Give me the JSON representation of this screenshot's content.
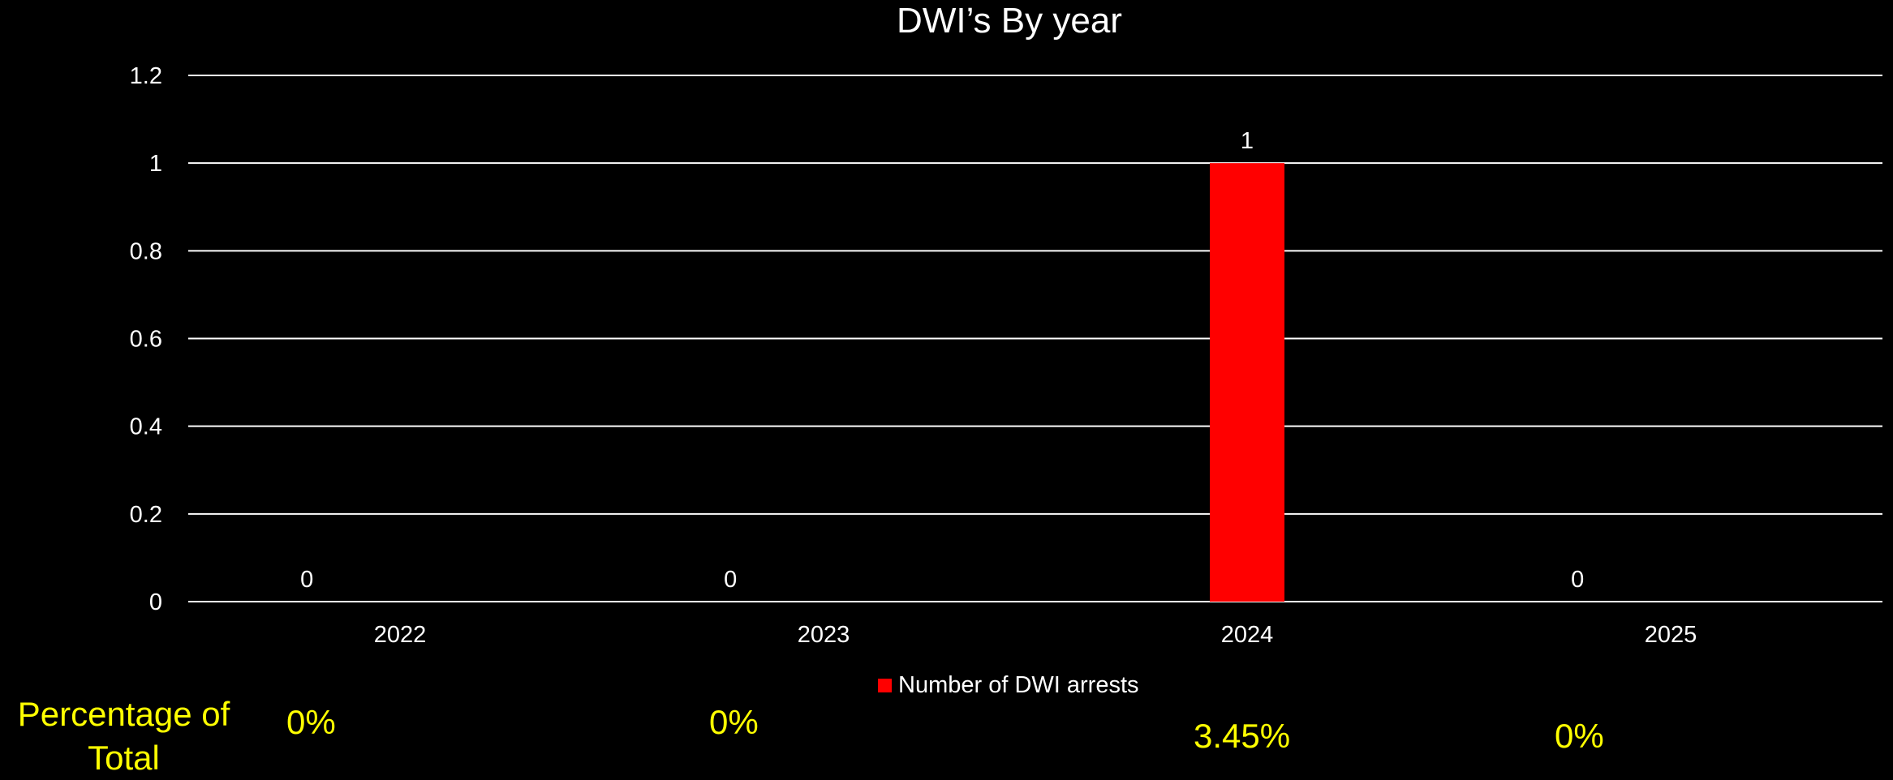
{
  "chart_data": {
    "type": "bar",
    "title": "DWI’s By year",
    "categories": [
      "2022",
      "2023",
      "2024",
      "2025"
    ],
    "series": [
      {
        "name": "Number of DWI arrests",
        "values": [
          0,
          0,
          1,
          0
        ],
        "data_labels": [
          "0",
          "0",
          "1",
          "0"
        ],
        "color": "#ff0000"
      }
    ],
    "ylim": [
      0,
      1.2
    ],
    "yticks": [
      "0",
      "0.2",
      "0.4",
      "0.6",
      "0.8",
      "1",
      "1.2"
    ],
    "xlabel": "",
    "ylabel": "",
    "grid": true,
    "legend_position": "bottom"
  },
  "percentage": {
    "title_line1": "Percentage of",
    "title_line2": "Total",
    "values": [
      "0%",
      "0%",
      "3.45%",
      "0%"
    ]
  },
  "colors": {
    "background": "#000000",
    "text": "#ffffff",
    "gridline": "#ffffff",
    "bar": "#ff0000",
    "percentage_text": "#ffff00"
  }
}
